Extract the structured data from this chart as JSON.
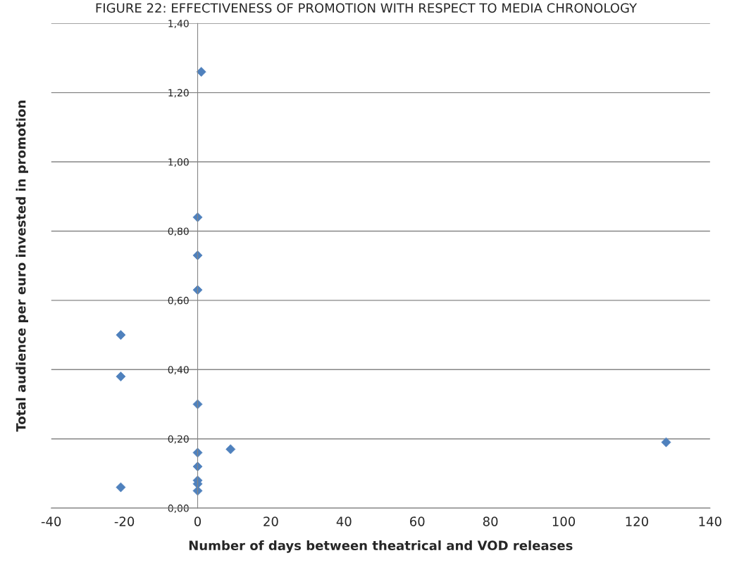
{
  "chart_data": {
    "type": "scatter",
    "title": "FIGURE 22: EFFECTIVENESS OF PROMOTION WITH RESPECT TO MEDIA CHRONOLOGY",
    "xlabel": "Number of days between theatrical and VOD releases",
    "ylabel": "Total audience per euro invested in promotion",
    "x": [
      -21,
      -21,
      -21,
      1,
      0,
      0,
      0,
      0,
      0,
      0,
      0,
      0,
      0,
      9,
      128
    ],
    "values": [
      0.5,
      0.38,
      0.06,
      1.26,
      0.84,
      0.73,
      0.63,
      0.3,
      0.16,
      0.12,
      0.08,
      0.07,
      0.05,
      0.17,
      0.19
    ],
    "color": "#4f81bd",
    "marker": "diamond",
    "xlim": [
      -40,
      140
    ],
    "xticks": [
      -40,
      -20,
      0,
      20,
      40,
      60,
      80,
      100,
      120,
      140
    ],
    "ylim": [
      0,
      1.4
    ],
    "yticks": [
      {
        "value": 0,
        "label": "0,00"
      },
      {
        "value": 0.2,
        "label": "0,20"
      },
      {
        "value": 0.4,
        "label": "0,40"
      },
      {
        "value": 0.6,
        "label": "0,60"
      },
      {
        "value": 0.8,
        "label": "0,80"
      },
      {
        "value": 1.0,
        "label": "1,00"
      },
      {
        "value": 1.2,
        "label": "1,20"
      },
      {
        "value": 1.4,
        "label": "1,40"
      }
    ],
    "grid": "y"
  }
}
